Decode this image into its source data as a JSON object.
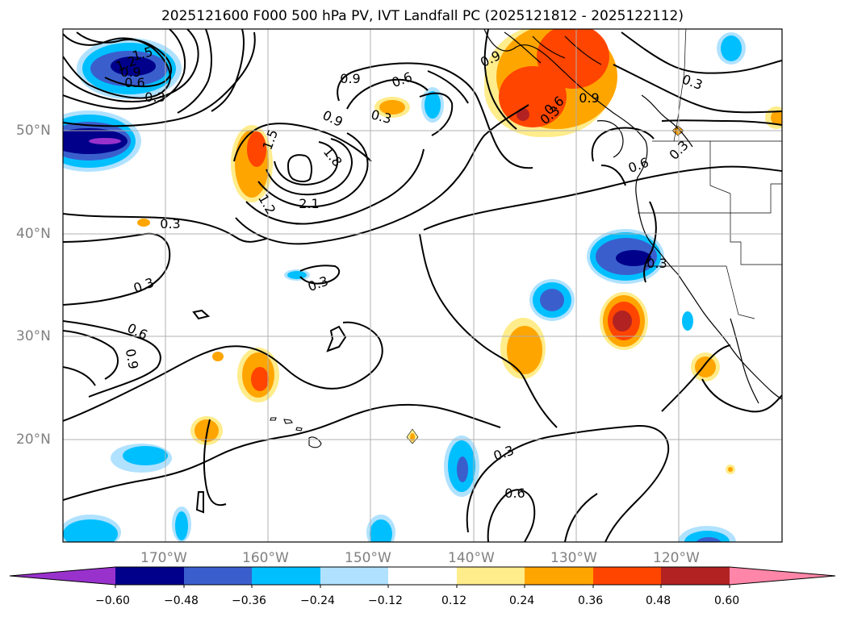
{
  "title": "2025121600 F000 500 hPa PV, IVT Landfall PC (2025121812 - 2025122112)",
  "map": {
    "lon_labels": [
      "170°W",
      "160°W",
      "150°W",
      "140°W",
      "130°W",
      "120°W"
    ],
    "lat_labels": [
      "50°N",
      "40°N",
      "30°N",
      "20°N"
    ],
    "pv_contour_labels": [
      "1.5",
      "1.2",
      "0.9",
      "0.6",
      "0.3",
      "0.9",
      "0.6",
      "0.3",
      "0.9",
      "1.8",
      "2.1",
      "1.2",
      "1.5",
      "0.9",
      "0.3",
      "0.3",
      "0.3",
      "0.6",
      "0.9",
      "0.3",
      "0.3",
      "0.6",
      "0.3",
      "0.6",
      "0.3",
      "0.6",
      "0.9",
      "0.3"
    ]
  },
  "colorbar": {
    "ticks": [
      "−0.60",
      "−0.48",
      "−0.36",
      "−0.24",
      "−0.12",
      "0.12",
      "0.24",
      "0.36",
      "0.48",
      "0.60"
    ],
    "colors": [
      "#9932cc",
      "#00008b",
      "#3a5fcd",
      "#00bfff",
      "#b0e2ff",
      "#ffffff",
      "#ffec8b",
      "#ffa500",
      "#ff4500",
      "#b22222",
      "#ff86a8"
    ]
  }
}
